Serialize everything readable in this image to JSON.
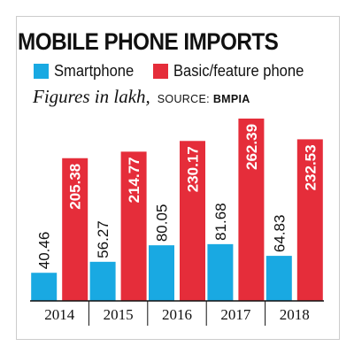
{
  "title": "MOBILE PHONE IMPORTS",
  "subtitle": "Figures in lakh,",
  "source_label": "SOURCE:",
  "source_value": "BMPIA",
  "colors": {
    "smartphone": "#19a9e2",
    "basic": "#e52d3a",
    "axis": "#111111",
    "frame": "#cccccc"
  },
  "chart_data": {
    "type": "bar",
    "categories": [
      "2014",
      "2015",
      "2016",
      "2017",
      "2018"
    ],
    "series": [
      {
        "name": "Smartphone",
        "values": [
          40.46,
          56.27,
          80.05,
          81.68,
          64.83
        ]
      },
      {
        "name": "Basic/feature phone",
        "values": [
          205.38,
          214.77,
          230.17,
          262.39,
          232.53
        ]
      }
    ],
    "ylim": [
      0,
      270
    ],
    "grid": false,
    "legend_position": "top-left",
    "value_labels": true
  }
}
